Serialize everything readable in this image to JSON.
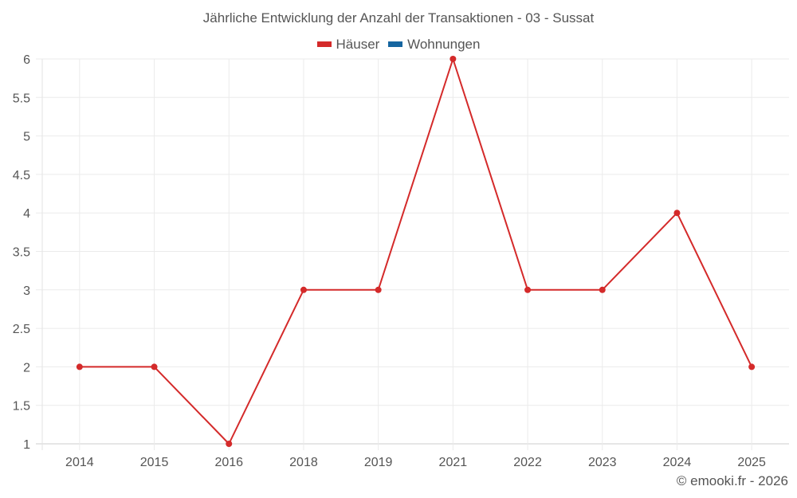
{
  "chart_data": {
    "type": "line",
    "title": "Jährliche Entwicklung der Anzahl der Transaktionen - 03 - Sussat",
    "categories": [
      "2014",
      "2015",
      "2016",
      "2018",
      "2019",
      "2021",
      "2022",
      "2023",
      "2024",
      "2025"
    ],
    "series": [
      {
        "name": "Häuser",
        "color": "#d42a2a",
        "values": [
          2,
          2,
          1,
          3,
          3,
          6,
          3,
          3,
          4,
          2
        ]
      },
      {
        "name": "Wohnungen",
        "color": "#1565a0",
        "values": []
      }
    ],
    "xlabel": "",
    "ylabel": "",
    "ylim": [
      1,
      6
    ],
    "yticks": [
      "1",
      "1.5",
      "2",
      "2.5",
      "3",
      "3.5",
      "4",
      "4.5",
      "5",
      "5.5",
      "6"
    ],
    "grid": true,
    "legend_position": "top"
  },
  "header": {
    "title": "Jährliche Entwicklung der Anzahl der Transaktionen - 03 - Sussat"
  },
  "legend": [
    {
      "label": "Häuser",
      "color": "#d42a2a"
    },
    {
      "label": "Wohnungen",
      "color": "#1565a0"
    }
  ],
  "footer": {
    "credit": "© emooki.fr - 2026"
  }
}
